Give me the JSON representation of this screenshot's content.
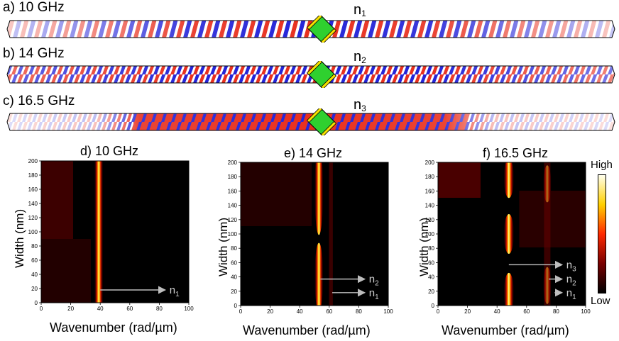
{
  "strips": [
    {
      "label": "a) 10 GHz",
      "mode": "n",
      "mode_sub": "1"
    },
    {
      "label": "b) 14 GHz",
      "mode": "n",
      "mode_sub": "2"
    },
    {
      "label": "c) 16.5 GHz",
      "mode": "n",
      "mode_sub": "3"
    }
  ],
  "colorbar": {
    "high_label": "High",
    "low_label": "Low",
    "colors": [
      "#000000",
      "#7a0000",
      "#ff2a00",
      "#ffd000",
      "#ffffee"
    ]
  },
  "chart_data": [
    {
      "type": "heatmap",
      "title": "d) 10 GHz",
      "xlabel": "Wavenumber (rad/µm)",
      "ylabel": "Width (nm)",
      "xlim": [
        0,
        100
      ],
      "ylim": [
        0,
        200
      ],
      "x_ticks": [
        "0",
        "20",
        "40",
        "60",
        "80",
        "100"
      ],
      "y_ticks": [
        "0",
        "20",
        "40",
        "60",
        "80",
        "100",
        "120",
        "140",
        "160",
        "180",
        "200"
      ],
      "bands_wavenumber": [
        39
      ],
      "annotations": [
        {
          "text": "n",
          "sub": "1",
          "arrow_from": [
            40,
            18
          ],
          "arrow_to": [
            84,
            18
          ]
        }
      ]
    },
    {
      "type": "heatmap",
      "title": "e) 14 GHz",
      "xlabel": "Wavenumber (rad/µm)",
      "ylabel": "Width (nm)",
      "xlim": [
        0,
        100
      ],
      "ylim": [
        0,
        200
      ],
      "x_ticks": [
        "0",
        "20",
        "40",
        "60",
        "80",
        "100"
      ],
      "y_ticks": [
        "0",
        "20",
        "40",
        "60",
        "80",
        "100",
        "120",
        "140",
        "160",
        "180",
        "200"
      ],
      "bands_wavenumber": [
        53,
        62
      ],
      "annotations": [
        {
          "text": "n",
          "sub": "2",
          "arrow_from": [
            54,
            37
          ],
          "arrow_to": [
            84,
            37
          ]
        },
        {
          "text": "n",
          "sub": "1",
          "arrow_from": [
            62,
            18
          ],
          "arrow_to": [
            84,
            18
          ]
        }
      ]
    },
    {
      "type": "heatmap",
      "title": "f) 16.5 GHz",
      "xlabel": "Wavenumber (rad/µm)",
      "ylabel": "Width (nm)",
      "xlim": [
        0,
        100
      ],
      "ylim": [
        0,
        200
      ],
      "x_ticks": [
        "0",
        "20",
        "40",
        "60",
        "80",
        "100"
      ],
      "y_ticks": [
        "0",
        "20",
        "40",
        "60",
        "80",
        "100",
        "120",
        "140",
        "160",
        "180",
        "200"
      ],
      "bands_wavenumber": [
        48,
        74
      ],
      "annotations": [
        {
          "text": "n",
          "sub": "3",
          "arrow_from": [
            48,
            57
          ],
          "arrow_to": [
            84,
            57
          ]
        },
        {
          "text": "n",
          "sub": "2",
          "arrow_from": [
            75,
            37
          ],
          "arrow_to": [
            84,
            37
          ]
        },
        {
          "text": "n",
          "sub": "1",
          "arrow_from": [
            79,
            18
          ],
          "arrow_to": [
            84,
            18
          ]
        }
      ]
    }
  ]
}
